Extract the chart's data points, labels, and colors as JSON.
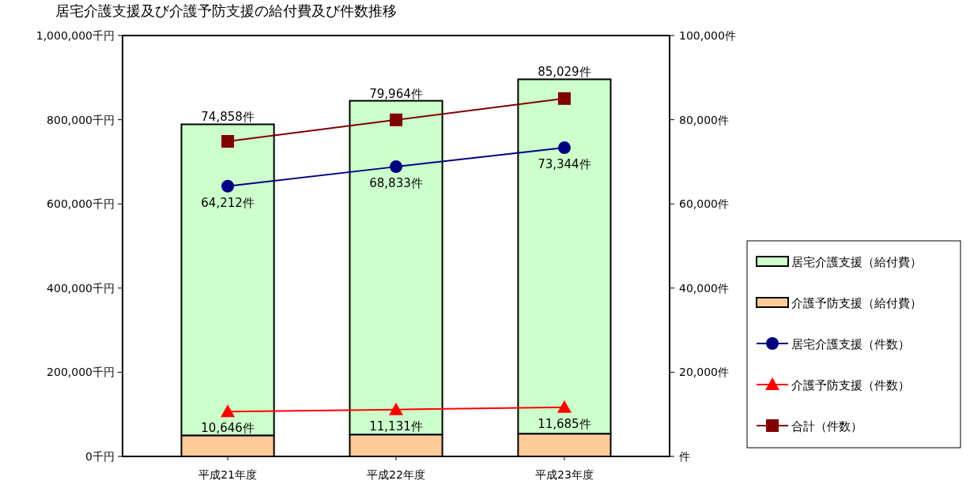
{
  "chart_data": {
    "type": "bar",
    "title": "居宅介護支援及び介護予防支援の給付費及び件数推移",
    "categories": [
      "平成21年度",
      "平成22年度",
      "平成23年度"
    ],
    "stacked": true,
    "series": [
      {
        "name": "介護予防支援（給付費）",
        "color": "#ffcc99",
        "values": [
          50000,
          52000,
          54000
        ]
      },
      {
        "name": "居宅介護支援（給付費）",
        "color": "#ccffcc",
        "values": [
          739000,
          793000,
          842000
        ]
      },
      {
        "name": "居宅介護支援（件数）",
        "type": "line",
        "axis": "y2",
        "marker": "circle",
        "color": "#000080",
        "values": [
          64212,
          68833,
          73344
        ],
        "value_labels": [
          "64,212件",
          "68,833件",
          "73,344件"
        ]
      },
      {
        "name": "介護予防支援（件数）",
        "type": "line",
        "axis": "y2",
        "marker": "triangle",
        "color": "#ff0000",
        "values": [
          10646,
          11131,
          11685
        ],
        "value_labels": [
          "10,646件",
          "11,131件",
          "11,685件"
        ]
      },
      {
        "name": "合計（件数）",
        "type": "line",
        "axis": "y2",
        "marker": "square",
        "color": "#800000",
        "values": [
          74858,
          79964,
          85029
        ],
        "value_labels": [
          "74,858件",
          "79,964件",
          "85,029件"
        ]
      }
    ],
    "ylim": [
      0,
      1000000
    ],
    "yticks": [
      {
        "value": 0,
        "label": "0千円"
      },
      {
        "value": 200000,
        "label": "200,000千円"
      },
      {
        "value": 400000,
        "label": "400,000千円"
      },
      {
        "value": 600000,
        "label": "600,000千円"
      },
      {
        "value": 800000,
        "label": "800,000千円"
      },
      {
        "value": 1000000,
        "label": "1,000,000千円"
      }
    ],
    "y2lim": [
      0,
      100000
    ],
    "y2ticks": [
      {
        "value": 0,
        "label": "件"
      },
      {
        "value": 20000,
        "label": "20,000件"
      },
      {
        "value": 40000,
        "label": "40,000件"
      },
      {
        "value": 60000,
        "label": "60,000件"
      },
      {
        "value": 80000,
        "label": "80,000件"
      },
      {
        "value": 100000,
        "label": "100,000件"
      }
    ],
    "legend": "right",
    "grid": false
  }
}
